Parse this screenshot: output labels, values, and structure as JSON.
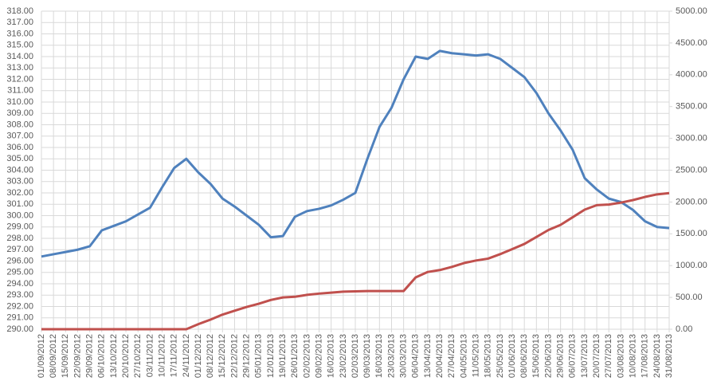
{
  "chart_data": {
    "type": "line",
    "categories": [
      "01/09/2012",
      "08/09/2012",
      "15/09/2012",
      "22/09/2012",
      "29/09/2012",
      "06/10/2012",
      "13/10/2012",
      "20/10/2012",
      "27/10/2012",
      "03/11/2012",
      "10/11/2012",
      "17/11/2012",
      "24/11/2012",
      "01/12/2012",
      "08/12/2012",
      "15/12/2012",
      "22/12/2012",
      "29/12/2012",
      "05/01/2013",
      "12/01/2013",
      "19/01/2013",
      "26/01/2013",
      "02/02/2013",
      "09/02/2013",
      "16/02/2013",
      "23/02/2013",
      "02/03/2013",
      "09/03/2013",
      "16/03/2013",
      "23/03/2013",
      "30/03/2013",
      "06/04/2013",
      "13/04/2013",
      "20/04/2013",
      "27/04/2013",
      "04/05/2013",
      "11/05/2013",
      "18/05/2013",
      "25/05/2013",
      "01/06/2013",
      "08/06/2013",
      "15/06/2013",
      "22/06/2013",
      "29/06/2013",
      "06/07/2013",
      "13/07/2013",
      "20/07/2013",
      "27/07/2013",
      "03/08/2013",
      "10/08/2013",
      "17/08/2013",
      "24/08/2013",
      "31/08/2013"
    ],
    "series": [
      {
        "color": "#4f81bd",
        "values": [
          296.4,
          296.6,
          296.8,
          297.0,
          297.3,
          298.7,
          299.1,
          299.5,
          300.1,
          300.7,
          302.5,
          304.2,
          305.0,
          303.8,
          302.8,
          301.5,
          300.8,
          300.0,
          299.2,
          298.1,
          298.2,
          299.9,
          300.4,
          300.6,
          300.9,
          301.4,
          302.0,
          305.0,
          307.8,
          309.5,
          312.0,
          314.0,
          313.8,
          314.5,
          314.3,
          314.2,
          314.1,
          314.2,
          313.8,
          313.0,
          312.2,
          310.8,
          309.0,
          307.5,
          305.8,
          303.3,
          302.3,
          301.5,
          301.2,
          300.5,
          299.5,
          299.0,
          298.9
        ]
      },
      {
        "color": "#c0504d",
        "axis": "y2",
        "values": [
          0,
          0,
          0,
          0,
          0,
          0,
          0,
          0,
          0,
          0,
          0,
          0,
          0,
          80,
          150,
          230,
          290,
          350,
          400,
          460,
          500,
          510,
          540,
          560,
          575,
          590,
          595,
          600,
          600,
          600,
          600,
          815,
          900,
          930,
          980,
          1040,
          1080,
          1110,
          1180,
          1260,
          1340,
          1450,
          1560,
          1640,
          1760,
          1880,
          1950,
          1960,
          1990,
          2030,
          2080,
          2120,
          2140
        ]
      }
    ],
    "ylim": [
      290,
      318
    ],
    "yticks": [
      {
        "value": 290,
        "label": "290.00"
      },
      {
        "value": 291,
        "label": "291.00"
      },
      {
        "value": 292,
        "label": "292.00"
      },
      {
        "value": 293,
        "label": "293.00"
      },
      {
        "value": 294,
        "label": "294.00"
      },
      {
        "value": 295,
        "label": "295.00"
      },
      {
        "value": 296,
        "label": "296.00"
      },
      {
        "value": 297,
        "label": "297.00"
      },
      {
        "value": 298,
        "label": "298.00"
      },
      {
        "value": 299,
        "label": "299.00"
      },
      {
        "value": 300,
        "label": "300.00"
      },
      {
        "value": 301,
        "label": "301.00"
      },
      {
        "value": 302,
        "label": "302.00"
      },
      {
        "value": 303,
        "label": "303.00"
      },
      {
        "value": 304,
        "label": "304.00"
      },
      {
        "value": 305,
        "label": "305.00"
      },
      {
        "value": 306,
        "label": "306.00"
      },
      {
        "value": 307,
        "label": "307.00"
      },
      {
        "value": 308,
        "label": "308.00"
      },
      {
        "value": 309,
        "label": "309.00"
      },
      {
        "value": 310,
        "label": "310.00"
      },
      {
        "value": 311,
        "label": "311.00"
      },
      {
        "value": 312,
        "label": "312.00"
      },
      {
        "value": 313,
        "label": "313.00"
      },
      {
        "value": 314,
        "label": "314.00"
      },
      {
        "value": 315,
        "label": "315.00"
      },
      {
        "value": 316,
        "label": "316.00"
      },
      {
        "value": 317,
        "label": "317.00"
      },
      {
        "value": 318,
        "label": "318.00"
      }
    ],
    "y2lim": [
      0,
      5000
    ],
    "y2ticks": [
      {
        "value": 0,
        "label": "0.00"
      },
      {
        "value": 500,
        "label": "500.00"
      },
      {
        "value": 1000,
        "label": "1000.00"
      },
      {
        "value": 1500,
        "label": "1500.00"
      },
      {
        "value": 2000,
        "label": "2000.00"
      },
      {
        "value": 2500,
        "label": "2500.00"
      },
      {
        "value": 3000,
        "label": "3000.00"
      },
      {
        "value": 3500,
        "label": "3500.00"
      },
      {
        "value": 4000,
        "label": "4000.00"
      },
      {
        "value": 4500,
        "label": "4500.00"
      },
      {
        "value": 5000,
        "label": "5000.00"
      }
    ],
    "grid": true
  }
}
